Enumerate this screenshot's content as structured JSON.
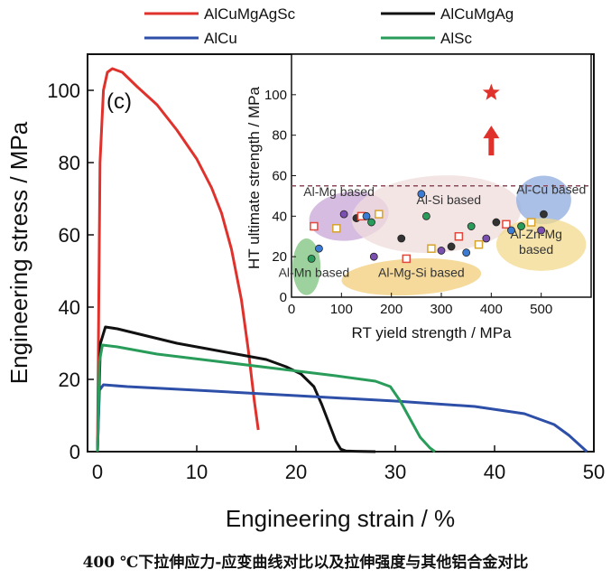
{
  "caption": "400 ℃下拉伸应力-应变曲线对比以及拉伸强度与其他铝合金对比",
  "chart_data": [
    {
      "type": "line",
      "panel_label": "(c)",
      "xlabel": "Engineering strain / %",
      "ylabel": "Engineering stress / MPa",
      "xlim": [
        -1,
        50
      ],
      "ylim": [
        0,
        110
      ],
      "xticks": [
        0,
        10,
        20,
        30,
        40,
        50
      ],
      "yticks": [
        0,
        20,
        40,
        60,
        80,
        100
      ],
      "legend_position": "top",
      "series": [
        {
          "name": "AlCuMgAgSc",
          "color": "#e0322d",
          "x": [
            0,
            0.25,
            0.6,
            1.0,
            1.5,
            2.5,
            4,
            6,
            8,
            10,
            11.5,
            12.5,
            13.5,
            14.5,
            15.2,
            15.8,
            16.2
          ],
          "y": [
            0,
            80,
            100,
            105,
            106,
            105,
            101,
            96,
            89,
            81,
            73,
            66,
            56,
            42,
            28,
            14,
            6
          ]
        },
        {
          "name": "AlCuMgAg",
          "color": "#111111",
          "x": [
            0,
            0.3,
            0.8,
            2,
            5,
            8,
            11,
            14,
            17,
            19,
            20.5,
            21.8,
            22.6,
            23.3,
            24.0,
            24.5,
            25,
            26,
            28
          ],
          "y": [
            0,
            30,
            34.5,
            34,
            32,
            30,
            28.5,
            27,
            25.5,
            23.5,
            21.5,
            18,
            13,
            8,
            3,
            0.7,
            0.2,
            0.1,
            0
          ]
        },
        {
          "name": "AlCu",
          "color": "#2d4fa8",
          "x": [
            0,
            0.2,
            0.6,
            3,
            10,
            20,
            30,
            38,
            43,
            46,
            47.5,
            48.5,
            49.3
          ],
          "y": [
            0,
            17,
            18.5,
            18,
            17,
            15.5,
            14,
            12.5,
            10.5,
            7.5,
            4.5,
            2,
            0
          ]
        },
        {
          "name": "AlSc",
          "color": "#2a9c5a",
          "x": [
            0,
            0.2,
            0.5,
            2,
            6,
            12,
            18,
            24,
            28,
            29.5,
            30.5,
            31.5,
            32.5,
            33.5,
            34
          ],
          "y": [
            0,
            25,
            29.5,
            29,
            27,
            25,
            23,
            21,
            19.5,
            18,
            14,
            9,
            4,
            1,
            0
          ]
        }
      ]
    },
    {
      "type": "scatter",
      "xlabel": "RT yield strength / MPa",
      "ylabel": "HT ultimate strength / MPa",
      "xlim": [
        0,
        600
      ],
      "ylim": [
        0,
        120
      ],
      "xticks": [
        0,
        100,
        200,
        300,
        400,
        500
      ],
      "yticks": [
        0,
        20,
        40,
        60,
        80,
        100
      ],
      "reference_line_y": 55,
      "highlight_point": {
        "x": 400,
        "y": 101,
        "color": "#e0322d",
        "marker": "star"
      },
      "regions": [
        {
          "label": "Al-Mg based",
          "color": "#c9a6d8",
          "cx": 115,
          "cy": 40
        },
        {
          "label": "Al-Si based",
          "color": "#f0dcdc",
          "cx": 290,
          "cy": 41
        },
        {
          "label": "Al-Cu based",
          "color": "#8eabdf",
          "cx": 505,
          "cy": 48
        },
        {
          "label": "Al-Zn-Mg based",
          "color": "#f2d98c",
          "cx": 500,
          "cy": 26
        },
        {
          "label": "Al-Mn based",
          "color": "#7cc27c",
          "cx": 30,
          "cy": 15
        },
        {
          "label": "Al-Mg-Si based",
          "color": "#f2cd7a",
          "cx": 240,
          "cy": 10
        }
      ],
      "points": [
        {
          "x": 45,
          "y": 35
        },
        {
          "x": 55,
          "y": 24
        },
        {
          "x": 40,
          "y": 19
        },
        {
          "x": 90,
          "y": 34
        },
        {
          "x": 105,
          "y": 41
        },
        {
          "x": 130,
          "y": 39
        },
        {
          "x": 140,
          "y": 40
        },
        {
          "x": 150,
          "y": 40
        },
        {
          "x": 160,
          "y": 37
        },
        {
          "x": 175,
          "y": 41
        },
        {
          "x": 165,
          "y": 20
        },
        {
          "x": 220,
          "y": 29
        },
        {
          "x": 230,
          "y": 19
        },
        {
          "x": 260,
          "y": 51
        },
        {
          "x": 270,
          "y": 40
        },
        {
          "x": 280,
          "y": 24
        },
        {
          "x": 300,
          "y": 23
        },
        {
          "x": 320,
          "y": 25
        },
        {
          "x": 335,
          "y": 30
        },
        {
          "x": 350,
          "y": 22
        },
        {
          "x": 360,
          "y": 35
        },
        {
          "x": 375,
          "y": 26
        },
        {
          "x": 390,
          "y": 29
        },
        {
          "x": 410,
          "y": 37
        },
        {
          "x": 430,
          "y": 36
        },
        {
          "x": 440,
          "y": 33
        },
        {
          "x": 460,
          "y": 35
        },
        {
          "x": 480,
          "y": 37
        },
        {
          "x": 500,
          "y": 33
        },
        {
          "x": 505,
          "y": 41
        }
      ]
    }
  ]
}
